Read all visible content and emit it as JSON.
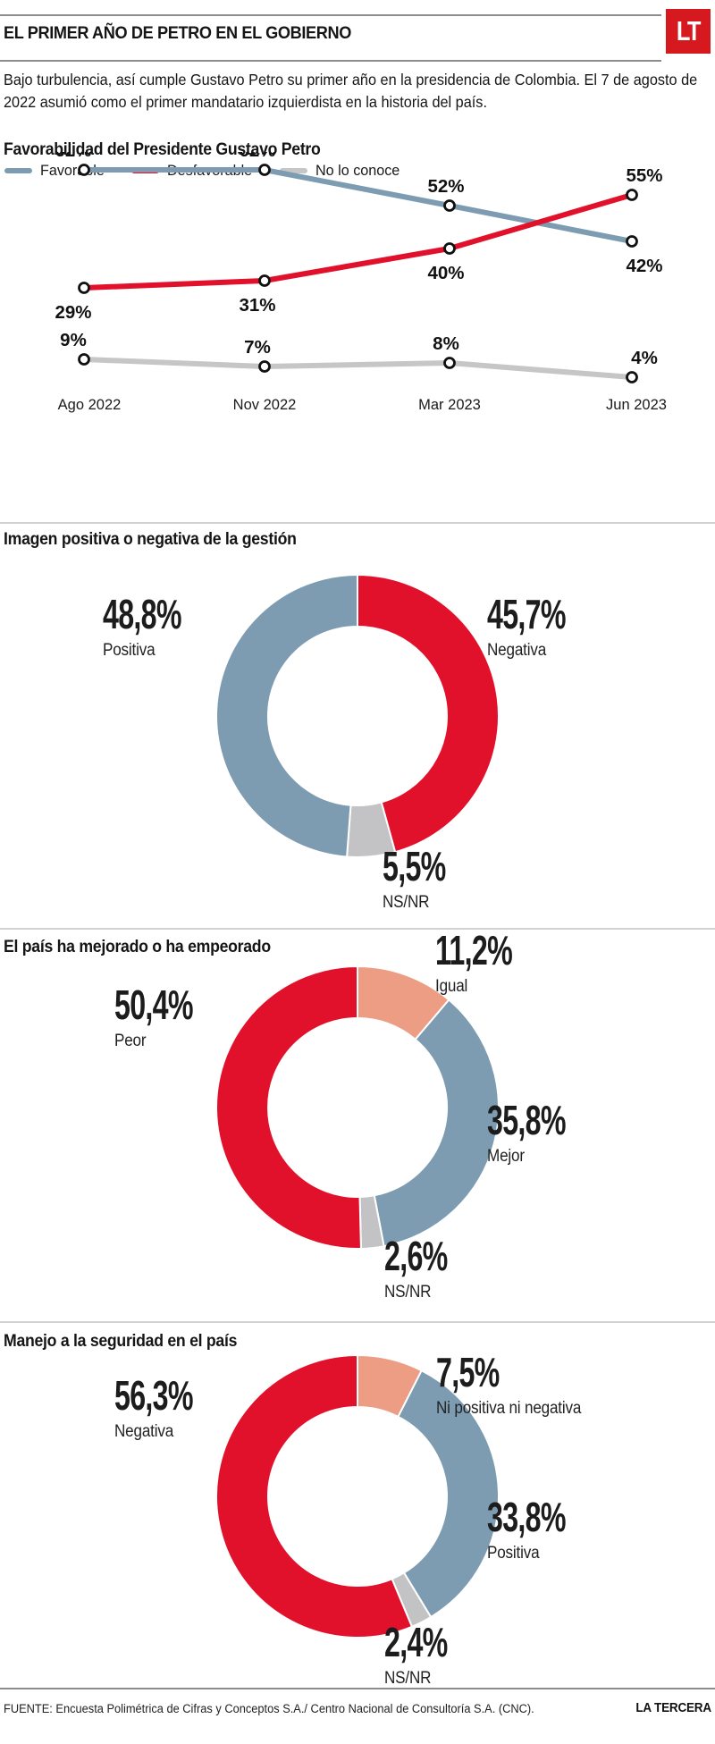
{
  "header": {
    "kicker": "EL PRIMER AÑO DE PETRO EN EL GOBIERNO",
    "logo_text": "LT",
    "intro": "Bajo turbulencia, así cumple Gustavo Petro su primer año en la presidencia de Colombia. El 7 de agosto de 2022 asumió como el primer mandatario izquierdista en la historia del país."
  },
  "colors": {
    "favorable": "#7d9cb1",
    "desfavorable": "#e2112b",
    "no_conoce": "#c6c6c6",
    "igual": "#ec9d83",
    "ns_nr": "#c3c3c5",
    "logo_red": "#d6181f",
    "marker_stroke": "#111111",
    "text": "#111111"
  },
  "chart_data": [
    {
      "type": "line",
      "title": "Favorabilidad del Presidente Gustavo Petro",
      "categories": [
        "Ago 2022",
        "Nov 2022",
        "Mar 2023",
        "Jun 2023"
      ],
      "series": [
        {
          "name": "Favorable",
          "color_key": "favorable",
          "values": [
            62,
            62,
            52,
            42
          ],
          "labels": [
            "62%",
            "62%",
            "52%",
            "42%"
          ],
          "label_side": [
            "above",
            "above",
            "above",
            "below"
          ]
        },
        {
          "name": "Desfavorable",
          "color_key": "desfavorable",
          "values": [
            29,
            31,
            40,
            55
          ],
          "labels": [
            "29%",
            "31%",
            "40%",
            "55%"
          ],
          "label_side": [
            "below",
            "below",
            "below",
            "above"
          ]
        },
        {
          "name": "No lo conoce",
          "color_key": "no_conoce",
          "values": [
            9,
            7,
            8,
            4
          ],
          "labels": [
            "9%",
            "7%",
            "8%",
            "4%"
          ],
          "label_side": [
            "above",
            "above",
            "above",
            "above"
          ]
        }
      ],
      "ylim": [
        0,
        70
      ],
      "grid": false,
      "legend_position": "top"
    },
    {
      "type": "pie",
      "title": "Imagen positiva o negativa de la gestión",
      "donut": true,
      "start_angle_deg": 0,
      "clockwise": true,
      "slices": [
        {
          "label": "Negativa",
          "value": 45.7,
          "display": "45,7%",
          "color_key": "desfavorable",
          "label_pos": "right"
        },
        {
          "label": "NS/NR",
          "value": 5.5,
          "display": "5,5%",
          "color_key": "ns_nr",
          "label_pos": "bottom"
        },
        {
          "label": "Positiva",
          "value": 48.8,
          "display": "48,8%",
          "color_key": "favorable",
          "label_pos": "left"
        }
      ]
    },
    {
      "type": "pie",
      "title": "El país ha mejorado o ha empeorado",
      "donut": true,
      "start_angle_deg": 0,
      "clockwise": true,
      "slices": [
        {
          "label": "Igual",
          "value": 11.2,
          "display": "11,2%",
          "color_key": "igual",
          "label_pos": "top"
        },
        {
          "label": "Mejor",
          "value": 35.8,
          "display": "35,8%",
          "color_key": "favorable",
          "label_pos": "right"
        },
        {
          "label": "NS/NR",
          "value": 2.6,
          "display": "2,6%",
          "color_key": "ns_nr",
          "label_pos": "bottom"
        },
        {
          "label": "Peor",
          "value": 50.4,
          "display": "50,4%",
          "color_key": "desfavorable",
          "label_pos": "left"
        }
      ]
    },
    {
      "type": "pie",
      "title": "Manejo a la seguridad en el país",
      "donut": true,
      "start_angle_deg": 0,
      "clockwise": true,
      "slices": [
        {
          "label": "Ni positiva ni negativa",
          "value": 7.5,
          "display": "7,5%",
          "color_key": "igual",
          "label_pos": "top"
        },
        {
          "label": "Positiva",
          "value": 33.8,
          "display": "33,8%",
          "color_key": "favorable",
          "label_pos": "right"
        },
        {
          "label": "NS/NR",
          "value": 2.4,
          "display": "2,4%",
          "color_key": "ns_nr",
          "label_pos": "bottom"
        },
        {
          "label": "Negativa",
          "value": 56.3,
          "display": "56,3%",
          "color_key": "desfavorable",
          "label_pos": "left"
        }
      ]
    }
  ],
  "footer": {
    "source": "FUENTE: Encuesta Polimétrica de Cifras y Conceptos S.A./ Centro Nacional de Consultoría S.A. (CNC).",
    "brand": "LA TERCERA"
  }
}
